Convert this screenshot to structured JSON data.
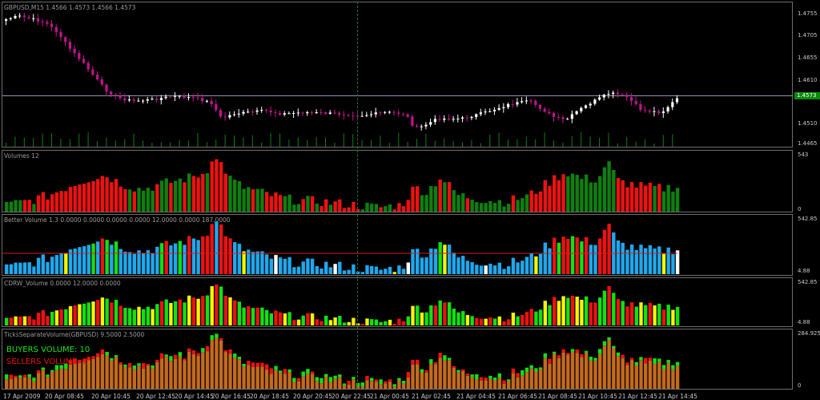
{
  "chart_data": [
    {
      "type": "candlestick",
      "title": "GBPUSD,M15  1.4566 1.4573 1.4566 1.4573",
      "y_ticks": [
        "1.4755",
        "1.4705",
        "1.4655",
        "1.4610",
        "1.4573",
        "1.4510",
        "1.4465"
      ],
      "current_price": "1.4573",
      "x_ticks": [
        "17 Apr 2009",
        "20 Apr 08:45",
        "20 Apr 10:45",
        "20 Apr 12:45",
        "20 Apr 14:45",
        "20 Apr 16:45",
        "20 Apr 18:45",
        "20 Apr 20:45",
        "20 Apr 22:45",
        "21 Apr 00:45",
        "21 Apr 02:45",
        "21 Apr 04:45",
        "21 Apr 06:45",
        "21 Apr 08:45",
        "21 Apr 10:45",
        "21 Apr 12:45",
        "21 Apr 14:45"
      ],
      "colors": {
        "bull": "#ffffff",
        "bear": "#c0148c",
        "grid": "#6d6d6d"
      }
    },
    {
      "type": "bar",
      "title": "Volumes 12",
      "y_ticks": [
        "543",
        "0"
      ],
      "colors": {
        "up": "#0f7f0f",
        "down": "#ee1111"
      }
    },
    {
      "type": "bar",
      "title": "Better Volume 1.3 0.0000 0.0000 0.0000 0.0000 12.0000 0.0000 187.0000",
      "y_ticks": [
        "542.85",
        "4.88"
      ],
      "colors": {
        "blue": "#1fa8ee",
        "red": "#ee1111",
        "green": "#12e012",
        "white": "#ffffff",
        "yellow": "#f5f500",
        "avg_line": "#cc2222"
      }
    },
    {
      "type": "bar",
      "title": "CDRW_Volume 0.0000 12.0000 0.0000",
      "y_ticks": [
        "542.85",
        "4.88"
      ],
      "colors": {
        "green": "#12e012",
        "red": "#ee1111",
        "yellow": "#f5f500"
      }
    },
    {
      "type": "bar",
      "title": "TicksSeparateVolume(GBPUSD) 9.5000 2.5000",
      "y_ticks": [
        "284.925",
        "0"
      ],
      "colors": {
        "orange": "#c46a1c",
        "green": "#12e012",
        "red": "#ee1111"
      }
    }
  ],
  "legend": {
    "buyers": "BUYERS VOLUME: 10",
    "sellers": "SELLERS VOLUME: 2"
  }
}
